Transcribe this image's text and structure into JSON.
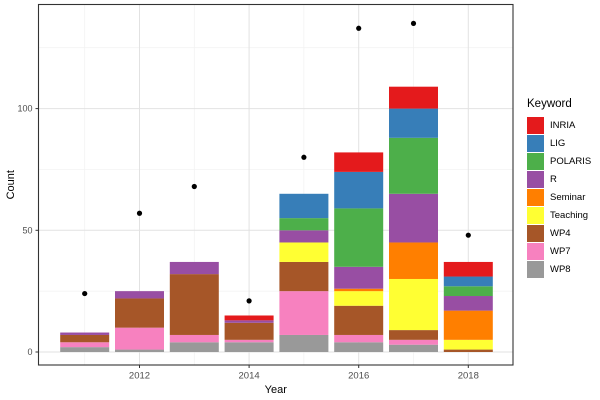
{
  "chart_data": {
    "type": "bar",
    "subtype": "stacked-with-points",
    "title": "",
    "xlabel": "Year",
    "ylabel": "Count",
    "legend_title": "Keyword",
    "grid": true,
    "legend_position": "right",
    "x": [
      2011,
      2012,
      2013,
      2014,
      2015,
      2016,
      2017,
      2018
    ],
    "x_tick_labels": [
      "2012",
      "2014",
      "2016",
      "2018"
    ],
    "x_tick_years": [
      2012,
      2014,
      2016,
      2018
    ],
    "x_minor_years": [
      2011,
      2013,
      2015,
      2017
    ],
    "y_ticks": [
      0,
      50,
      100
    ],
    "y_tick_labels": [
      "0",
      "50",
      "100"
    ],
    "y_minor_ticks": [
      25,
      75,
      125
    ],
    "ylim": [
      -6,
      143
    ],
    "bar_stack_order_bottom_to_top": [
      "WP8",
      "WP7",
      "WP4",
      "Teaching",
      "Seminar",
      "R",
      "POLARIS",
      "LIG",
      "INRIA"
    ],
    "series": [
      {
        "name": "INRIA",
        "color": "#E41A1C",
        "values": [
          0,
          0,
          0,
          2,
          0,
          8,
          9,
          6
        ]
      },
      {
        "name": "LIG",
        "color": "#377EB8",
        "values": [
          0,
          0,
          0,
          0,
          10,
          15,
          12,
          4
        ]
      },
      {
        "name": "POLARIS",
        "color": "#4DAF4A",
        "values": [
          0,
          0,
          0,
          0,
          5,
          24,
          23,
          4
        ]
      },
      {
        "name": "R",
        "color": "#984EA3",
        "values": [
          1,
          3,
          5,
          1,
          5,
          9,
          20,
          6
        ]
      },
      {
        "name": "Seminar",
        "color": "#FF7F00",
        "values": [
          0,
          0,
          0,
          0,
          0,
          1,
          15,
          12
        ]
      },
      {
        "name": "Teaching",
        "color": "#FFFF33",
        "values": [
          0,
          0,
          0,
          0,
          8,
          6,
          21,
          4
        ]
      },
      {
        "name": "WP4",
        "color": "#A65628",
        "values": [
          3,
          12,
          25,
          7,
          12,
          12,
          4,
          1
        ]
      },
      {
        "name": "WP7",
        "color": "#F781BF",
        "values": [
          2,
          9,
          3,
          1,
          18,
          3,
          2,
          0
        ]
      },
      {
        "name": "WP8",
        "color": "#999999",
        "values": [
          2,
          1,
          4,
          4,
          7,
          4,
          3,
          0
        ]
      }
    ],
    "bar_totals": [
      8,
      25,
      37,
      15,
      65,
      82,
      109,
      37
    ],
    "points": {
      "name": "yearly-dots",
      "color": "#000000",
      "values": [
        24,
        57,
        68,
        21,
        80,
        133,
        135,
        48
      ]
    },
    "colors": {
      "panel_border": "#333333",
      "grid_major": "#e2e2e2",
      "grid_minor": "#f1f1f1",
      "tick_label": "#4d4d4d",
      "axis_title": "#000000",
      "point": "#000000",
      "background": "#ffffff"
    }
  }
}
